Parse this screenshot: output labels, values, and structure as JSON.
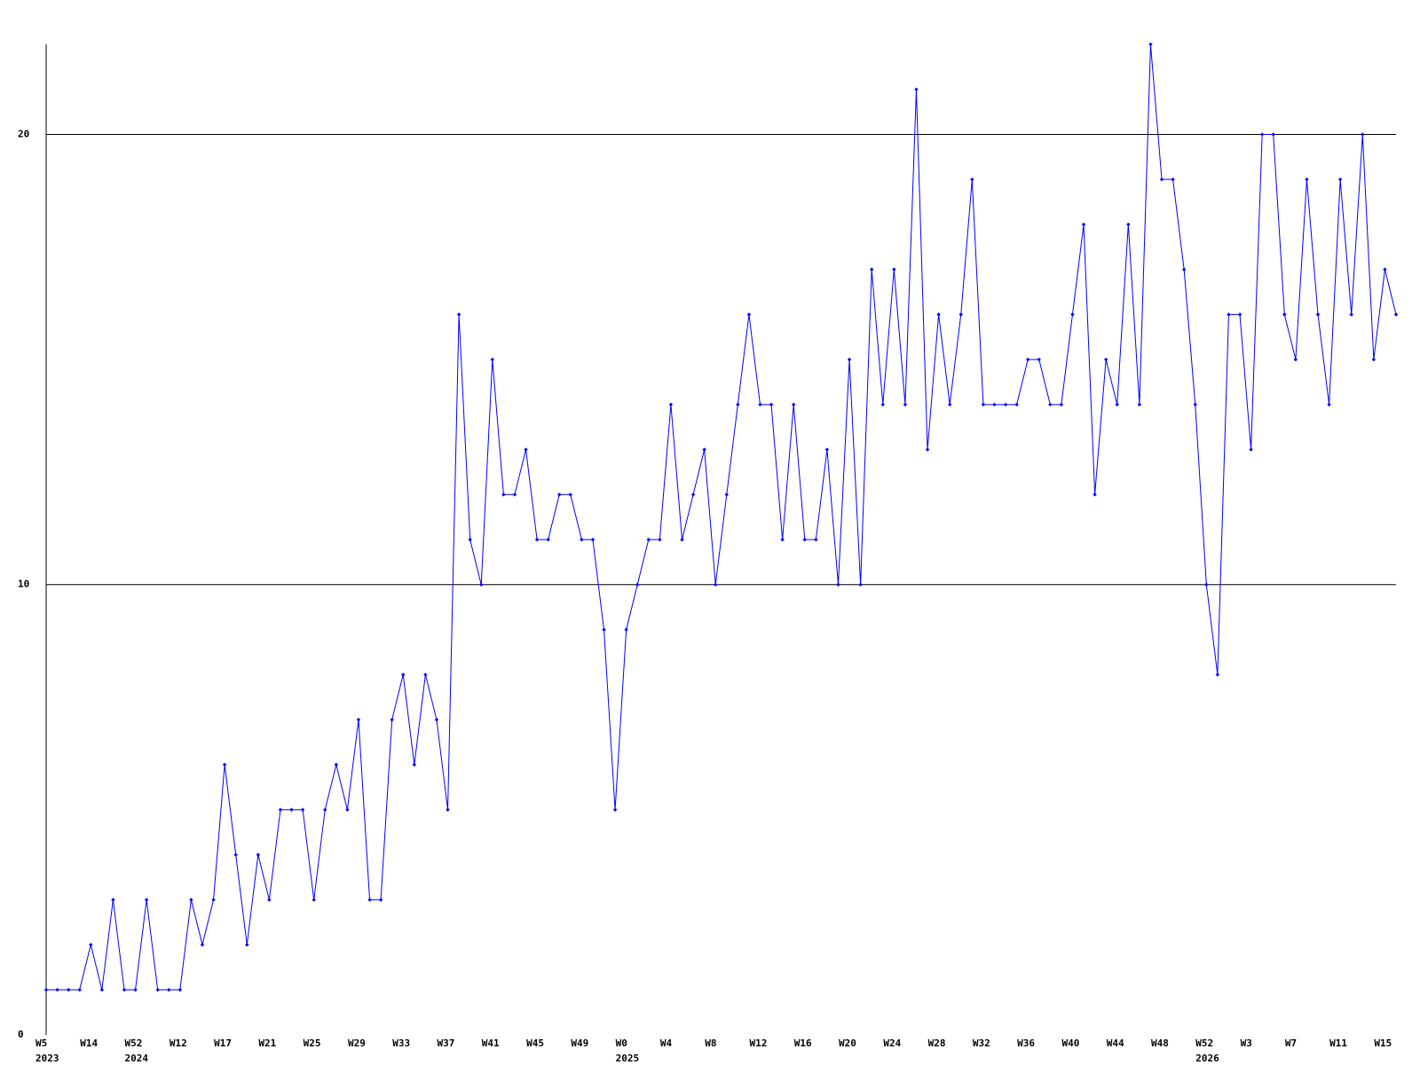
{
  "chart_data": {
    "type": "line",
    "categories": [
      "W5",
      null,
      null,
      null,
      "W14",
      null,
      null,
      null,
      "W52",
      null,
      null,
      null,
      "W12",
      null,
      null,
      null,
      "W17",
      null,
      null,
      null,
      "W21",
      null,
      null,
      null,
      "W25",
      null,
      null,
      null,
      "W29",
      null,
      null,
      null,
      "W33",
      null,
      null,
      null,
      "W37",
      null,
      null,
      null,
      "W41",
      null,
      null,
      null,
      "W45",
      null,
      null,
      null,
      "W49",
      null,
      null,
      null,
      "W0",
      null,
      null,
      null,
      "W4",
      null,
      null,
      null,
      "W8",
      null,
      null,
      null,
      "W12",
      null,
      null,
      null,
      "W16",
      null,
      null,
      null,
      "W20",
      null,
      null,
      null,
      "W24",
      null,
      null,
      null,
      "W28",
      null,
      null,
      null,
      "W32",
      null,
      null,
      null,
      "W36",
      null,
      null,
      null,
      "W40",
      null,
      null,
      null,
      "W44",
      null,
      null,
      null,
      "W48",
      null,
      null,
      null,
      "W52",
      null,
      null,
      null,
      "W3",
      null,
      null,
      null,
      "W7",
      null,
      null,
      null,
      "W11",
      null,
      null,
      null,
      "W15",
      null
    ],
    "category_years": [
      "2023",
      null,
      null,
      null,
      null,
      null,
      null,
      null,
      "2024",
      null,
      null,
      null,
      null,
      null,
      null,
      null,
      null,
      null,
      null,
      null,
      null,
      null,
      null,
      null,
      null,
      null,
      null,
      null,
      null,
      null,
      null,
      null,
      null,
      null,
      null,
      null,
      null,
      null,
      null,
      null,
      null,
      null,
      null,
      null,
      null,
      null,
      null,
      null,
      null,
      null,
      null,
      null,
      "2025",
      null,
      null,
      null,
      null,
      null,
      null,
      null,
      null,
      null,
      null,
      null,
      null,
      null,
      null,
      null,
      null,
      null,
      null,
      null,
      null,
      null,
      null,
      null,
      null,
      null,
      null,
      null,
      null,
      null,
      null,
      null,
      null,
      null,
      null,
      null,
      null,
      null,
      null,
      null,
      null,
      null,
      null,
      null,
      null,
      null,
      null,
      null,
      null,
      null,
      null,
      null,
      "2026",
      null,
      null,
      null,
      null,
      null,
      null,
      null,
      null,
      null,
      null,
      null,
      null,
      null,
      null,
      null,
      null,
      null
    ],
    "series": [
      {
        "color": "#0000ff",
        "values": [
          1,
          1,
          1,
          1,
          2,
          1,
          3,
          1,
          1,
          3,
          1,
          1,
          1,
          3,
          2,
          3,
          6,
          4,
          2,
          4,
          3,
          5,
          5,
          5,
          3,
          5,
          6,
          5,
          7,
          3,
          3,
          7,
          8,
          6,
          8,
          7,
          5,
          16,
          11,
          10,
          15,
          12,
          12,
          13,
          11,
          11,
          12,
          12,
          11,
          11,
          9,
          5,
          9,
          10,
          11,
          11,
          14,
          11,
          12,
          13,
          10,
          12,
          14,
          16,
          14,
          14,
          11,
          14,
          11,
          11,
          13,
          10,
          15,
          10,
          17,
          14,
          17,
          14,
          21,
          13,
          16,
          14,
          16,
          19,
          14,
          14,
          14,
          14,
          15,
          15,
          14,
          14,
          16,
          18,
          12,
          15,
          14,
          18,
          14,
          22,
          19,
          19,
          17,
          14,
          10,
          8,
          16,
          16,
          13,
          20,
          20,
          16,
          15,
          19,
          16,
          14,
          19,
          16,
          20,
          15,
          17,
          16
        ]
      }
    ],
    "ylim": [
      0,
      22
    ],
    "yticks": [
      0,
      10,
      20
    ],
    "grid": true
  }
}
